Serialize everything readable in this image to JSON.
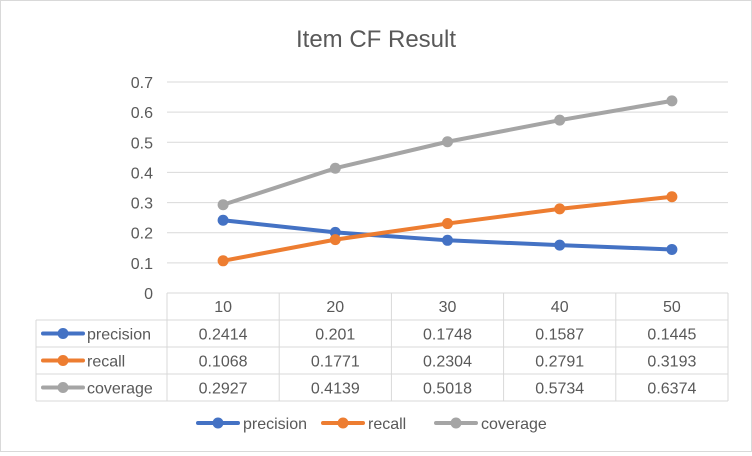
{
  "chart_data": {
    "type": "line",
    "title": "Item CF Result",
    "categories": [
      "10",
      "20",
      "30",
      "40",
      "50"
    ],
    "ylim": [
      0,
      0.7
    ],
    "yticks": [
      "0",
      "0.1",
      "0.2",
      "0.3",
      "0.4",
      "0.5",
      "0.6",
      "0.7"
    ],
    "grid": true,
    "legend": "bottom",
    "data_table": true,
    "series": [
      {
        "name": "precision",
        "color": "#4472c4",
        "values": [
          0.2414,
          0.201,
          0.1748,
          0.1587,
          0.1445
        ],
        "labels": [
          "0.2414",
          "0.201",
          "0.1748",
          "0.1587",
          "0.1445"
        ]
      },
      {
        "name": "recall",
        "color": "#ed7d31",
        "values": [
          0.1068,
          0.1771,
          0.2304,
          0.2791,
          0.3193
        ],
        "labels": [
          "0.1068",
          "0.1771",
          "0.2304",
          "0.2791",
          "0.3193"
        ]
      },
      {
        "name": "coverage",
        "color": "#a5a5a5",
        "values": [
          0.2927,
          0.4139,
          0.5018,
          0.5734,
          0.6374
        ],
        "labels": [
          "0.2927",
          "0.4139",
          "0.5018",
          "0.5734",
          "0.6374"
        ]
      }
    ]
  }
}
